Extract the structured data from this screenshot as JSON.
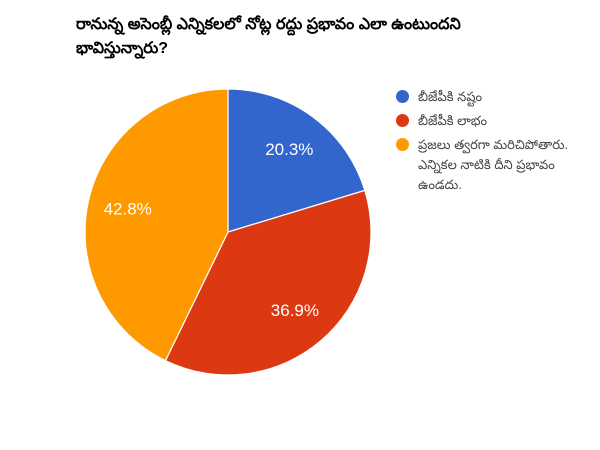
{
  "title": "రానున్న అసెంబ్లీ ఎన్నికలలో నోట్ల రద్దు ప్రభావం ఎలా ఉంటుందని భావిస్తున్నారు?",
  "chart_data": {
    "type": "pie",
    "title": "రానున్న అసెంబ్లీ ఎన్నికలలో నోట్ల రద్దు ప్రభావం ఎలా ఉంటుందని భావిస్తున్నారు?",
    "categories": [
      "బీజేపీకి నష్టం",
      "బీజేపీకి లాభం",
      "ప్రజలు త్వరగా మరిచిపోతారు. ఎన్నికల నాటికి దీని ప్రభావం ఉండదు."
    ],
    "values": [
      20.3,
      36.9,
      42.8
    ],
    "value_labels": [
      "20.3%",
      "36.9%",
      "42.8%"
    ],
    "colors": [
      "#3366cc",
      "#dc3912",
      "#ff9900"
    ],
    "slice_border_color": "#ffffff",
    "start_angle_deg": 0,
    "direction": "clockwise",
    "legend_position": "right",
    "background_color": "#ffffff",
    "title_color": "#000000",
    "legend_text_color": "#444444",
    "label_text_color": "#ffffff"
  }
}
